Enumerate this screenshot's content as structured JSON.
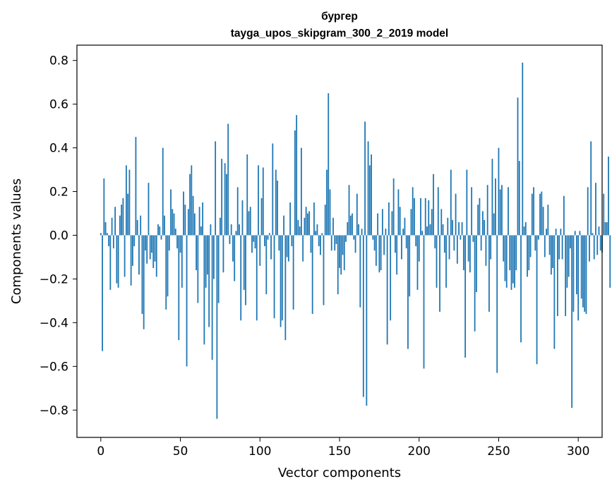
{
  "chart_data": {
    "type": "bar",
    "title_line1": "бургер",
    "title_line2": "tayga_upos_skipgram_300_2_2019 model",
    "xlabel": "Vector components",
    "ylabel": "Components values",
    "xlim": [
      -15,
      315
    ],
    "ylim": [
      -0.925,
      0.87
    ],
    "grid": false,
    "bar_color": "#1f77b4",
    "xticks": [
      0,
      50,
      100,
      150,
      200,
      250,
      300
    ],
    "xtick_labels": [
      "0",
      "50",
      "100",
      "150",
      "200",
      "250",
      "300"
    ],
    "yticks": [
      -0.8,
      -0.6,
      -0.4,
      -0.2,
      0.0,
      0.2,
      0.4,
      0.6,
      0.8
    ],
    "ytick_labels": [
      "−0.8",
      "−0.6",
      "−0.4",
      "−0.2",
      "0.0",
      "0.2",
      "0.4",
      "0.6",
      "0.8"
    ],
    "values": [
      0.01,
      -0.53,
      0.26,
      0.06,
      0.01,
      -0.05,
      -0.25,
      0.08,
      -0.06,
      0.13,
      -0.22,
      -0.24,
      0.09,
      0.14,
      0.17,
      -0.19,
      0.32,
      0.19,
      0.3,
      -0.23,
      -0.14,
      -0.05,
      0.45,
      0.07,
      -0.18,
      0.09,
      -0.36,
      -0.43,
      -0.07,
      -0.13,
      0.24,
      -0.11,
      -0.08,
      -0.15,
      -0.12,
      -0.19,
      0.05,
      0.04,
      -0.02,
      0.4,
      0.09,
      -0.34,
      -0.28,
      -0.07,
      0.21,
      0.12,
      0.1,
      0.03,
      -0.06,
      -0.48,
      -0.08,
      -0.24,
      0.2,
      0.14,
      -0.6,
      0.12,
      0.28,
      0.32,
      0.18,
      0.1,
      -0.16,
      -0.31,
      0.13,
      0.04,
      0.15,
      -0.5,
      -0.24,
      -0.18,
      -0.42,
      0.05,
      -0.57,
      -0.2,
      0.43,
      -0.84,
      -0.31,
      0.08,
      0.35,
      -0.17,
      0.33,
      0.28,
      0.51,
      -0.04,
      0.05,
      -0.12,
      -0.21,
      0.02,
      0.22,
      0.05,
      -0.39,
      0.16,
      -0.25,
      -0.32,
      0.37,
      0.11,
      0.13,
      -0.08,
      -0.03,
      -0.06,
      -0.39,
      0.32,
      -0.14,
      0.17,
      0.31,
      -0.05,
      -0.27,
      -0.02,
      0.01,
      -0.11,
      0.42,
      -0.38,
      0.3,
      0.25,
      -0.07,
      -0.42,
      -0.39,
      0.09,
      -0.48,
      -0.1,
      -0.12,
      0.15,
      -0.05,
      -0.34,
      0.48,
      0.55,
      0.07,
      0.04,
      0.4,
      -0.12,
      0.08,
      0.13,
      0.1,
      0.11,
      -0.08,
      -0.36,
      0.15,
      0.02,
      0.05,
      -0.05,
      -0.09,
      0.01,
      -0.32,
      0.14,
      0.3,
      0.65,
      0.21,
      -0.07,
      0.08,
      -0.07,
      -0.04,
      -0.27,
      -0.15,
      -0.18,
      -0.09,
      -0.16,
      -0.03,
      0.06,
      0.23,
      0.09,
      0.1,
      -0.02,
      -0.08,
      0.19,
      0.05,
      -0.33,
      0.03,
      -0.74,
      0.52,
      -0.78,
      0.43,
      0.32,
      0.37,
      -0.02,
      -0.07,
      -0.14,
      0.1,
      -0.17,
      -0.16,
      0.12,
      -0.09,
      0.03,
      -0.5,
      0.15,
      -0.39,
      0.11,
      0.26,
      -0.08,
      -0.18,
      0.21,
      0.13,
      -0.11,
      0.03,
      0.08,
      -0.06,
      -0.52,
      -0.28,
      0.12,
      0.22,
      0.17,
      -0.05,
      -0.25,
      -0.12,
      0.17,
      0.02,
      -0.61,
      0.17,
      0.04,
      0.16,
      0.05,
      0.12,
      0.28,
      -0.06,
      -0.24,
      0.22,
      -0.35,
      0.12,
      0.05,
      -0.08,
      -0.24,
      0.08,
      -0.11,
      0.3,
      0.07,
      -0.07,
      0.19,
      -0.13,
      0.06,
      -0.02,
      0.06,
      -0.16,
      -0.56,
      0.3,
      -0.12,
      -0.17,
      0.22,
      -0.03,
      -0.44,
      -0.26,
      0.14,
      0.17,
      -0.07,
      0.11,
      0.07,
      -0.14,
      0.23,
      -0.35,
      -0.11,
      0.35,
      0.1,
      0.26,
      -0.63,
      0.4,
      0.21,
      0.23,
      -0.12,
      -0.21,
      -0.24,
      0.22,
      -0.16,
      -0.25,
      -0.22,
      -0.24,
      -0.16,
      0.63,
      0.34,
      -0.49,
      0.79,
      0.04,
      0.06,
      -0.19,
      -0.16,
      -0.1,
      0.19,
      0.22,
      -0.07,
      -0.59,
      -0.02,
      0.19,
      0.2,
      0.13,
      -0.1,
      0.03,
      0.14,
      -0.09,
      -0.18,
      -0.15,
      -0.52,
      0.03,
      -0.37,
      -0.11,
      0.03,
      -0.11,
      0.18,
      -0.37,
      -0.24,
      -0.19,
      -0.06,
      -0.79,
      -0.35,
      0.02,
      -0.27,
      -0.39,
      0.02,
      -0.29,
      -0.33,
      -0.35,
      -0.36,
      0.22,
      -0.12,
      0.43,
      0.01,
      -0.11,
      0.24,
      -0.09,
      0.04,
      -0.07,
      -0.08,
      0.19,
      0.06,
      0.06,
      0.36,
      -0.24
    ]
  }
}
